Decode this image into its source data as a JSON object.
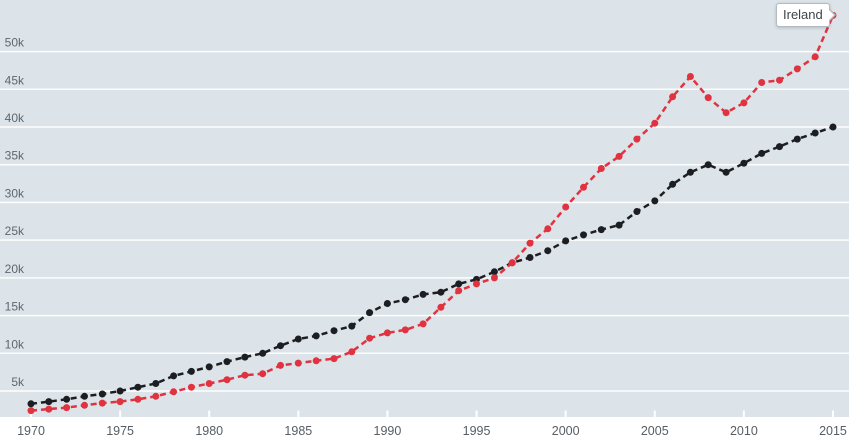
{
  "tooltip": {
    "label": "Ireland"
  },
  "chart_data": {
    "type": "line",
    "title": "",
    "unit_suffix": "k",
    "x": [
      1970,
      1971,
      1972,
      1973,
      1974,
      1975,
      1976,
      1977,
      1978,
      1979,
      1980,
      1981,
      1982,
      1983,
      1984,
      1985,
      1986,
      1987,
      1988,
      1989,
      1990,
      1991,
      1992,
      1993,
      1994,
      1995,
      1996,
      1997,
      1998,
      1999,
      2000,
      2001,
      2002,
      2003,
      2004,
      2005,
      2006,
      2007,
      2008,
      2009,
      2010,
      2011,
      2012,
      2013,
      2014,
      2015
    ],
    "x_axis": {
      "ticks": [
        1970,
        1975,
        1980,
        1985,
        1990,
        1995,
        2000,
        2005,
        2010,
        2015
      ]
    },
    "y_axis": {
      "ticks": [
        5,
        10,
        15,
        20,
        25,
        30,
        35,
        40,
        45,
        50
      ],
      "tick_suffix": "k"
    },
    "legend_position": "callout-on-last-point-of-highlight-series",
    "grid": true,
    "series": [
      {
        "name": "comparison-series",
        "label": "",
        "color": "#1c1e22",
        "values": [
          3.3,
          3.6,
          3.9,
          4.3,
          4.6,
          5.0,
          5.5,
          6.0,
          7.0,
          7.6,
          8.2,
          8.9,
          9.5,
          10.0,
          11.0,
          11.9,
          12.3,
          13.0,
          13.6,
          15.4,
          16.6,
          17.1,
          17.8,
          18.1,
          19.2,
          19.8,
          20.8,
          22.0,
          22.7,
          23.6,
          24.9,
          25.7,
          26.4,
          27.0,
          28.8,
          30.2,
          32.4,
          34.0,
          35.0,
          34.0,
          35.2,
          36.5,
          37.4,
          38.4,
          39.2,
          40.0
        ]
      },
      {
        "name": "Ireland",
        "label": "Ireland",
        "color": "#e13240",
        "values": [
          2.4,
          2.6,
          2.8,
          3.1,
          3.4,
          3.6,
          3.9,
          4.3,
          4.9,
          5.5,
          6.0,
          6.5,
          7.1,
          7.3,
          8.4,
          8.7,
          9.0,
          9.3,
          10.2,
          12.0,
          12.7,
          13.1,
          13.9,
          16.1,
          18.3,
          19.2,
          20.0,
          22.0,
          24.6,
          26.5,
          29.4,
          32.0,
          34.5,
          36.1,
          38.4,
          40.5,
          44.0,
          46.7,
          43.9,
          41.9,
          43.2,
          45.9,
          46.2,
          47.7,
          49.3,
          54.8
        ]
      }
    ]
  },
  "colors": {
    "plot_background": "#dce4e9",
    "gridline": "#ffffff",
    "y_label": "#5d6771",
    "x_label": "#565d64",
    "below_axis_background": "#ffffff"
  }
}
